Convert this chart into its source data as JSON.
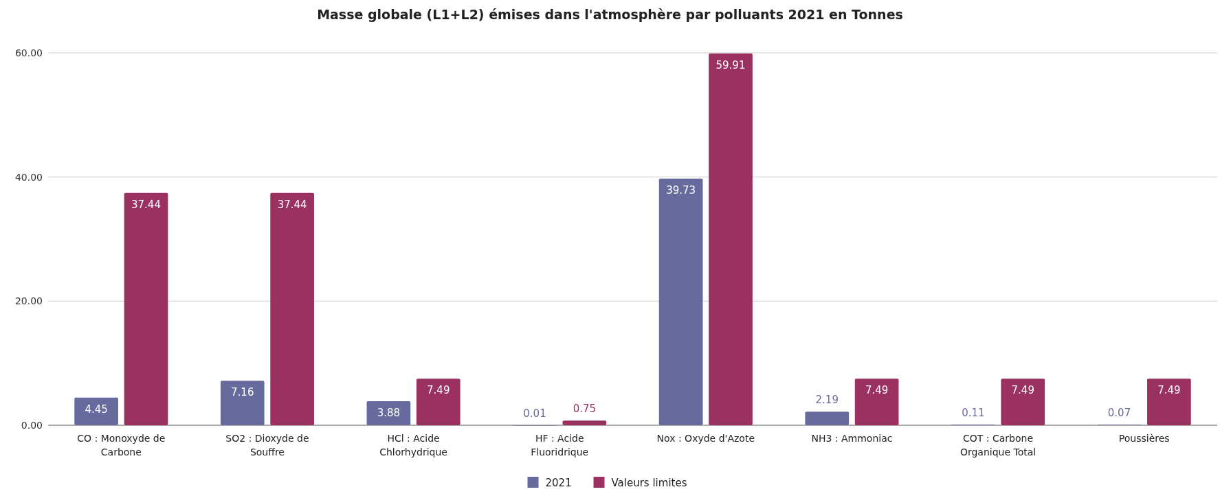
{
  "chart_data": {
    "type": "bar",
    "title": "Masse globale (L1+L2) émises dans l'atmosphère par polluants 2021 en Tonnes",
    "categories": [
      "CO : Monoxyde de Carbone",
      "SO2 : Dioxyde de Souffre",
      "HCl : Acide Chlorhydrique",
      "HF : Acide Fluoridrique",
      "Nox : Oxyde d'Azote",
      "NH3 : Ammoniac",
      "COT  : Carbone Organique Total",
      "Poussières"
    ],
    "series": [
      {
        "name": "2021",
        "color": "#676a9c",
        "values": [
          4.45,
          7.16,
          3.88,
          0.01,
          39.73,
          2.19,
          0.11,
          0.07
        ]
      },
      {
        "name": "Valeurs limites",
        "color": "#9b3161",
        "values": [
          37.44,
          37.44,
          7.49,
          0.75,
          59.91,
          7.49,
          7.49,
          7.49
        ]
      }
    ],
    "ylim": [
      0,
      60
    ],
    "yticks": [
      {
        "value": 0,
        "label": "0.00"
      },
      {
        "value": 20,
        "label": "20.00"
      },
      {
        "value": 40,
        "label": "40.00"
      },
      {
        "value": 60,
        "label": "60.00"
      }
    ],
    "grid": "y",
    "legend": "bottom",
    "data_labels": true
  }
}
